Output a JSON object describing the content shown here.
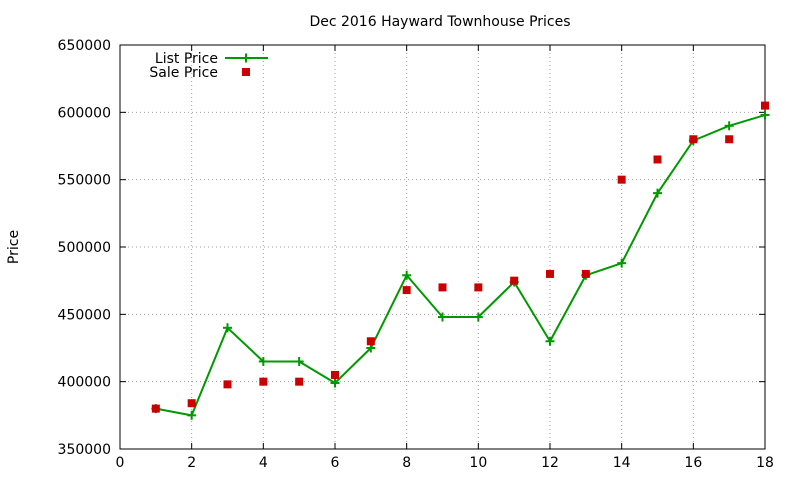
{
  "chart_data": {
    "type": "line",
    "title": "Dec 2016 Hayward Townhouse Prices",
    "xlabel": "",
    "ylabel": "Price",
    "xlim": [
      0,
      18
    ],
    "ylim": [
      350000,
      650000
    ],
    "x_ticks": [
      0,
      2,
      4,
      6,
      8,
      10,
      12,
      14,
      16,
      18
    ],
    "y_ticks": [
      350000,
      400000,
      450000,
      500000,
      550000,
      600000,
      650000
    ],
    "grid": true,
    "legend_position": "top-left",
    "series": [
      {
        "name": "List Price",
        "style": "line-with-plus-markers",
        "color": "#009900",
        "x": [
          1,
          2,
          3,
          4,
          5,
          6,
          7,
          8,
          9,
          10,
          11,
          12,
          13,
          14,
          15,
          16,
          17,
          18
        ],
        "values": [
          380000,
          375000,
          440000,
          415000,
          415000,
          399000,
          425000,
          479000,
          448000,
          448000,
          474000,
          430000,
          479000,
          488000,
          540000,
          579000,
          590000,
          598000
        ]
      },
      {
        "name": "Sale Price",
        "style": "square-markers",
        "color": "#cc0000",
        "x": [
          1,
          2,
          3,
          4,
          5,
          6,
          7,
          8,
          9,
          10,
          11,
          12,
          13,
          14,
          15,
          16,
          17,
          18
        ],
        "values": [
          380000,
          384000,
          398000,
          400000,
          400000,
          405000,
          430000,
          468000,
          470000,
          470000,
          475000,
          480000,
          480000,
          550000,
          565000,
          580000,
          580000,
          605000
        ]
      }
    ]
  }
}
